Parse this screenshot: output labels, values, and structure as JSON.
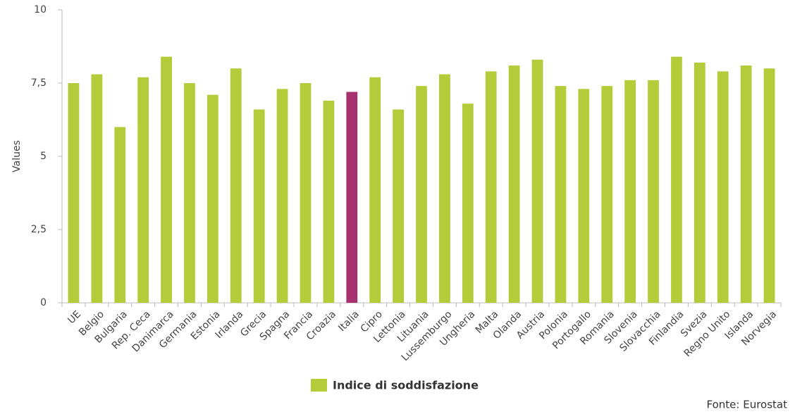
{
  "chart_data": {
    "type": "bar",
    "y_label": "Values",
    "source": "Fonte: Eurostat",
    "categories": [
      "UE",
      "Belgio",
      "Bulgaria",
      "Rep. Ceca",
      "Danimarca",
      "Germania",
      "Estonia",
      "Irlanda",
      "Grecia",
      "Spagna",
      "Francia",
      "Croazia",
      "Italia",
      "Cipro",
      "Lettonia",
      "Lituania",
      "Lussemburgo",
      "Ungheria",
      "Malta",
      "Olanda",
      "Austria",
      "Polonia",
      "Portogallo",
      "Romania",
      "Slovenia",
      "Slovacchia",
      "Finlandia",
      "Svezia",
      "Regno Unito",
      "Islanda",
      "Norvegia"
    ],
    "series": [
      {
        "name": "Indice di soddisfazione",
        "color": "#b5cc3a",
        "values": [
          7.5,
          7.8,
          6.0,
          7.7,
          8.4,
          7.5,
          7.1,
          8.0,
          6.6,
          7.3,
          7.5,
          6.9,
          7.2,
          7.7,
          6.6,
          7.4,
          7.8,
          6.8,
          7.9,
          8.1,
          8.3,
          7.4,
          7.3,
          7.4,
          7.6,
          7.6,
          8.4,
          8.2,
          7.9,
          8.1,
          8.0
        ],
        "colors": [
          "#b5cc3a",
          "#b5cc3a",
          "#b5cc3a",
          "#b5cc3a",
          "#b5cc3a",
          "#b5cc3a",
          "#b5cc3a",
          "#b5cc3a",
          "#b5cc3a",
          "#b5cc3a",
          "#b5cc3a",
          "#b5cc3a",
          "#a5316f",
          "#b5cc3a",
          "#b5cc3a",
          "#b5cc3a",
          "#b5cc3a",
          "#b5cc3a",
          "#b5cc3a",
          "#b5cc3a",
          "#b5cc3a",
          "#b5cc3a",
          "#b5cc3a",
          "#b5cc3a",
          "#b5cc3a",
          "#b5cc3a",
          "#b5cc3a",
          "#b5cc3a",
          "#b5cc3a",
          "#b5cc3a",
          "#b5cc3a"
        ]
      }
    ],
    "ylim": [
      0,
      10
    ],
    "yticks": [
      0,
      {
        "value": 2.5,
        "label": "2,5"
      },
      5,
      {
        "value": 7.5,
        "label": "7,5"
      },
      10
    ],
    "grid": false
  }
}
